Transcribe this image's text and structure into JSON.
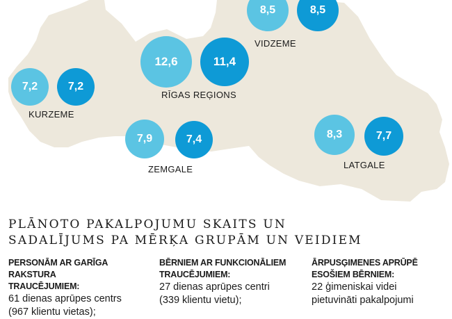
{
  "colors": {
    "map_fill": "#ede8dc",
    "planned_bubble": "#5bc4e3",
    "actual_bubble": "#0e9ad6",
    "background": "#ffffff"
  },
  "regions": [
    {
      "id": "vidzeme",
      "name": "VIDZEME",
      "values": [
        "8,5",
        "8,5"
      ]
    },
    {
      "id": "rigas",
      "name": "RĪGAS REĢIONS",
      "values": [
        "12,6",
        "11,4"
      ]
    },
    {
      "id": "kurzeme",
      "name": "KURZEME",
      "values": [
        "7,2",
        "7,2"
      ]
    },
    {
      "id": "zemgale",
      "name": "ZEMGALE",
      "values": [
        "7,9",
        "7,4"
      ]
    },
    {
      "id": "latgale",
      "name": "LATGALE",
      "values": [
        "8,3",
        "7,7"
      ]
    }
  ],
  "heading": {
    "line1": "PLĀNOTO PAKALPOJUMU SKAITS UN",
    "line2": "SADALĪJUMS PA MĒRĶA GRUPĀM UN VEIDIEM"
  },
  "columns": [
    {
      "title_line1": "PERSONĀM AR GARĪGA RAKSTURA",
      "title_line2": "TRAUCĒJUMIEM:",
      "body": "61 dienas aprūpes centrs\n(967 klientu vietas);"
    },
    {
      "title_line1": "BĒRNIEM AR FUNKCIONĀLIEM",
      "title_line2": "TRAUCĒJUMIEM:",
      "body": "27 dienas aprūpes centri\n(339 klientu vietu);"
    },
    {
      "title_line1": "ĀRPUSĢIMENES APRŪPĒ",
      "title_line2": "ESOŠIEM BĒRNIEM:",
      "body": "22 ģimeniskai videi\npietuvināti pakalpojumi"
    }
  ]
}
